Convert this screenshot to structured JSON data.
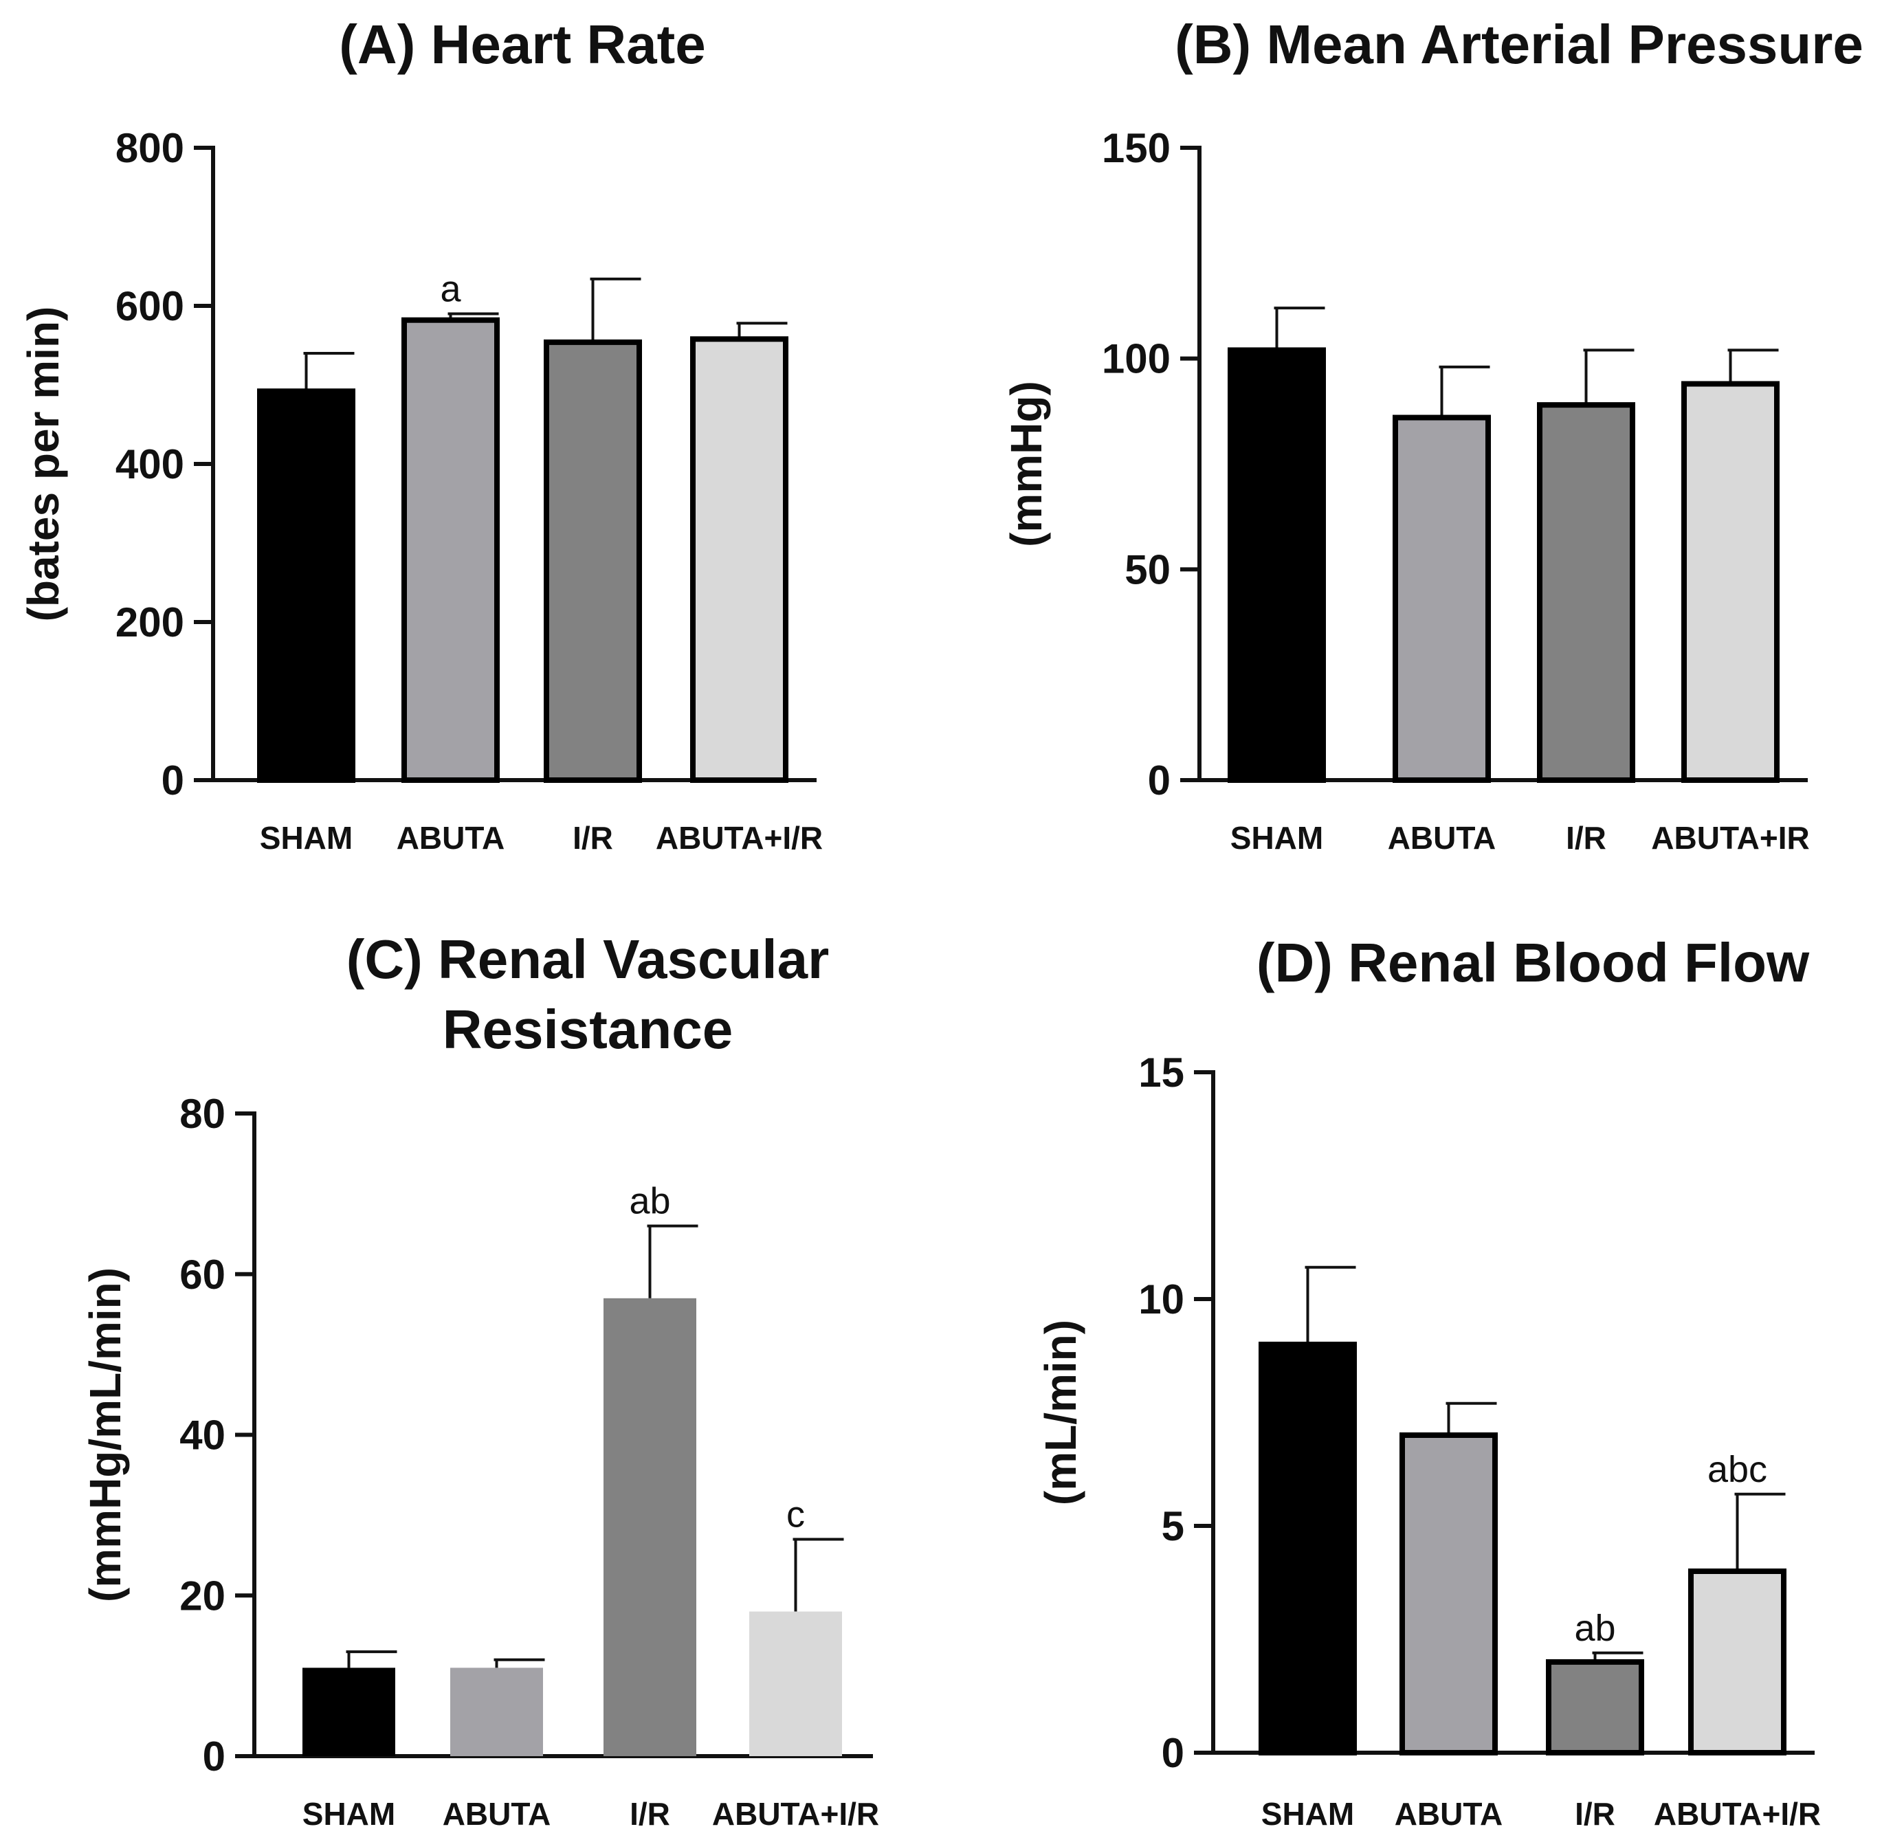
{
  "chart_data": [
    {
      "type": "bar",
      "title_lines": [
        "(A) Heart Rate"
      ],
      "ylabel": "(bates per min)",
      "xlabel": "",
      "categories": [
        "SHAM",
        "ABUTA",
        "I/R",
        "ABUTA+I/R"
      ],
      "values": [
        492,
        582,
        554,
        558
      ],
      "errors": [
        48,
        8,
        80,
        20
      ],
      "annotations": [
        "",
        "a",
        "",
        ""
      ],
      "ylim": [
        0,
        800
      ],
      "yticks": [
        "0",
        "200",
        "400",
        "600",
        "800"
      ],
      "bar_colors": [
        "#000000",
        "#a3a2a7",
        "#828282",
        "#d9d9d9"
      ],
      "bar_border": true
    },
    {
      "type": "bar",
      "title_lines": [
        "(B) Mean Arterial Pressure"
      ],
      "ylabel": "(mmHg)",
      "xlabel": "",
      "categories": [
        "SHAM",
        "ABUTA",
        "I/R",
        "ABUTA+IR"
      ],
      "values": [
        102,
        86,
        89,
        94
      ],
      "errors": [
        10,
        12,
        13,
        8
      ],
      "annotations": [
        "",
        "",
        "",
        ""
      ],
      "ylim": [
        0,
        150
      ],
      "yticks": [
        "0",
        "50",
        "100",
        "150"
      ],
      "bar_colors": [
        "#000000",
        "#a3a2a7",
        "#828282",
        "#d9d9d9"
      ],
      "bar_border": true
    },
    {
      "type": "bar",
      "title_lines": [
        "(C) Renal Vascular",
        "Resistance"
      ],
      "ylabel": "(mmHg/mL/min)",
      "xlabel": "",
      "categories": [
        "SHAM",
        "ABUTA",
        "I/R",
        "ABUTA+I/R"
      ],
      "values": [
        11,
        11,
        57,
        18
      ],
      "errors": [
        2,
        1,
        9,
        9
      ],
      "annotations": [
        "",
        "",
        "ab",
        "c"
      ],
      "ylim": [
        0,
        80
      ],
      "yticks": [
        "0",
        "20",
        "40",
        "60",
        "80"
      ],
      "bar_colors": [
        "#000000",
        "#a3a2a7",
        "#828282",
        "#d9d9d9"
      ],
      "bar_border": false
    },
    {
      "type": "bar",
      "title_lines": [
        "(D)  Renal Blood Flow"
      ],
      "ylabel": "(mL/min)",
      "xlabel": "",
      "categories": [
        "SHAM",
        "ABUTA",
        "I/R",
        "ABUTA+I/R"
      ],
      "values": [
        9.0,
        7.0,
        2.0,
        4.0
      ],
      "errors": [
        1.7,
        0.7,
        0.2,
        1.7
      ],
      "annotations": [
        "",
        "",
        "ab",
        "abc"
      ],
      "ylim": [
        0,
        15
      ],
      "yticks": [
        "0",
        "5",
        "10",
        "15"
      ],
      "bar_colors": [
        "#000000",
        "#a3a2a7",
        "#828282",
        "#d9d9d9"
      ],
      "bar_border": true
    }
  ]
}
